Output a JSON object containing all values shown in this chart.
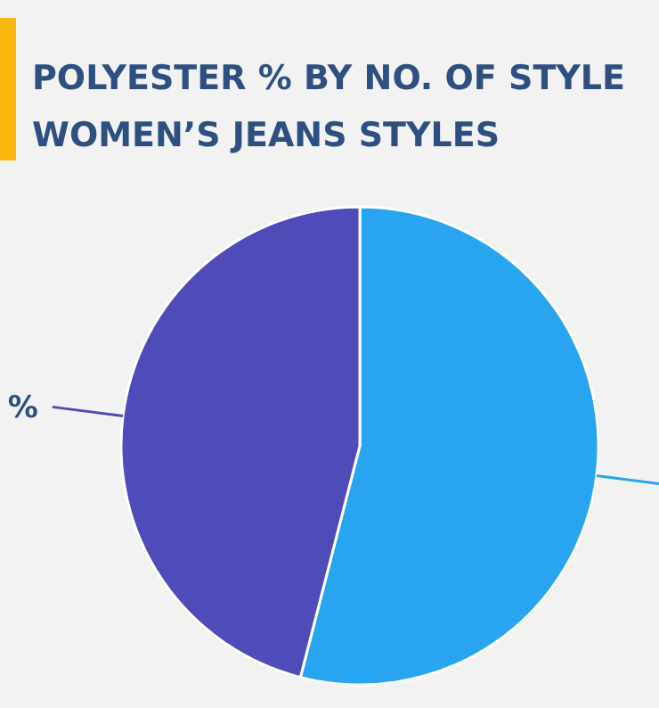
{
  "chart_data": {
    "type": "pie",
    "title": "POLYESTER % BY NO. OF STYLE",
    "subtitle": "WOMEN’S JEANS STYLES",
    "categories": [
      null,
      null
    ],
    "values": [
      54,
      46
    ],
    "colors": [
      "#29a4f0",
      "#4f4bb8"
    ],
    "value_labels": [
      null,
      "%"
    ]
  }
}
